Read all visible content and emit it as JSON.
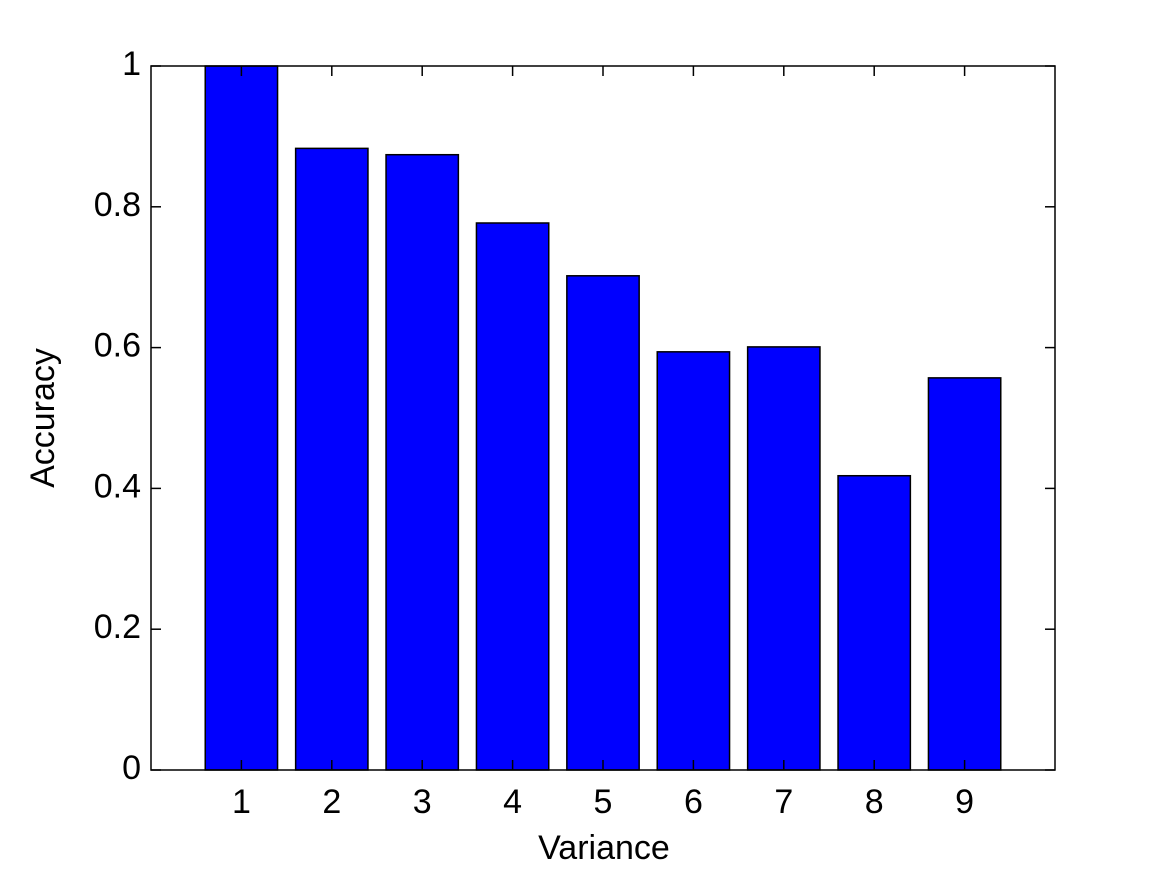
{
  "chart_data": {
    "type": "bar",
    "xlabel": "Variance",
    "ylabel": "Accuracy",
    "x": [
      1,
      2,
      3,
      4,
      5,
      6,
      7,
      8,
      9
    ],
    "values": [
      1.0,
      0.883,
      0.874,
      0.777,
      0.702,
      0.594,
      0.601,
      0.418,
      0.557
    ],
    "color": "#0000ff",
    "xlim": [
      0,
      10
    ],
    "xticks": [
      1,
      2,
      3,
      4,
      5,
      6,
      7,
      8,
      9
    ],
    "ylim": [
      0,
      1
    ],
    "yticks": [
      0,
      0.2,
      0.4,
      0.6,
      0.8,
      1
    ],
    "grid": false
  }
}
